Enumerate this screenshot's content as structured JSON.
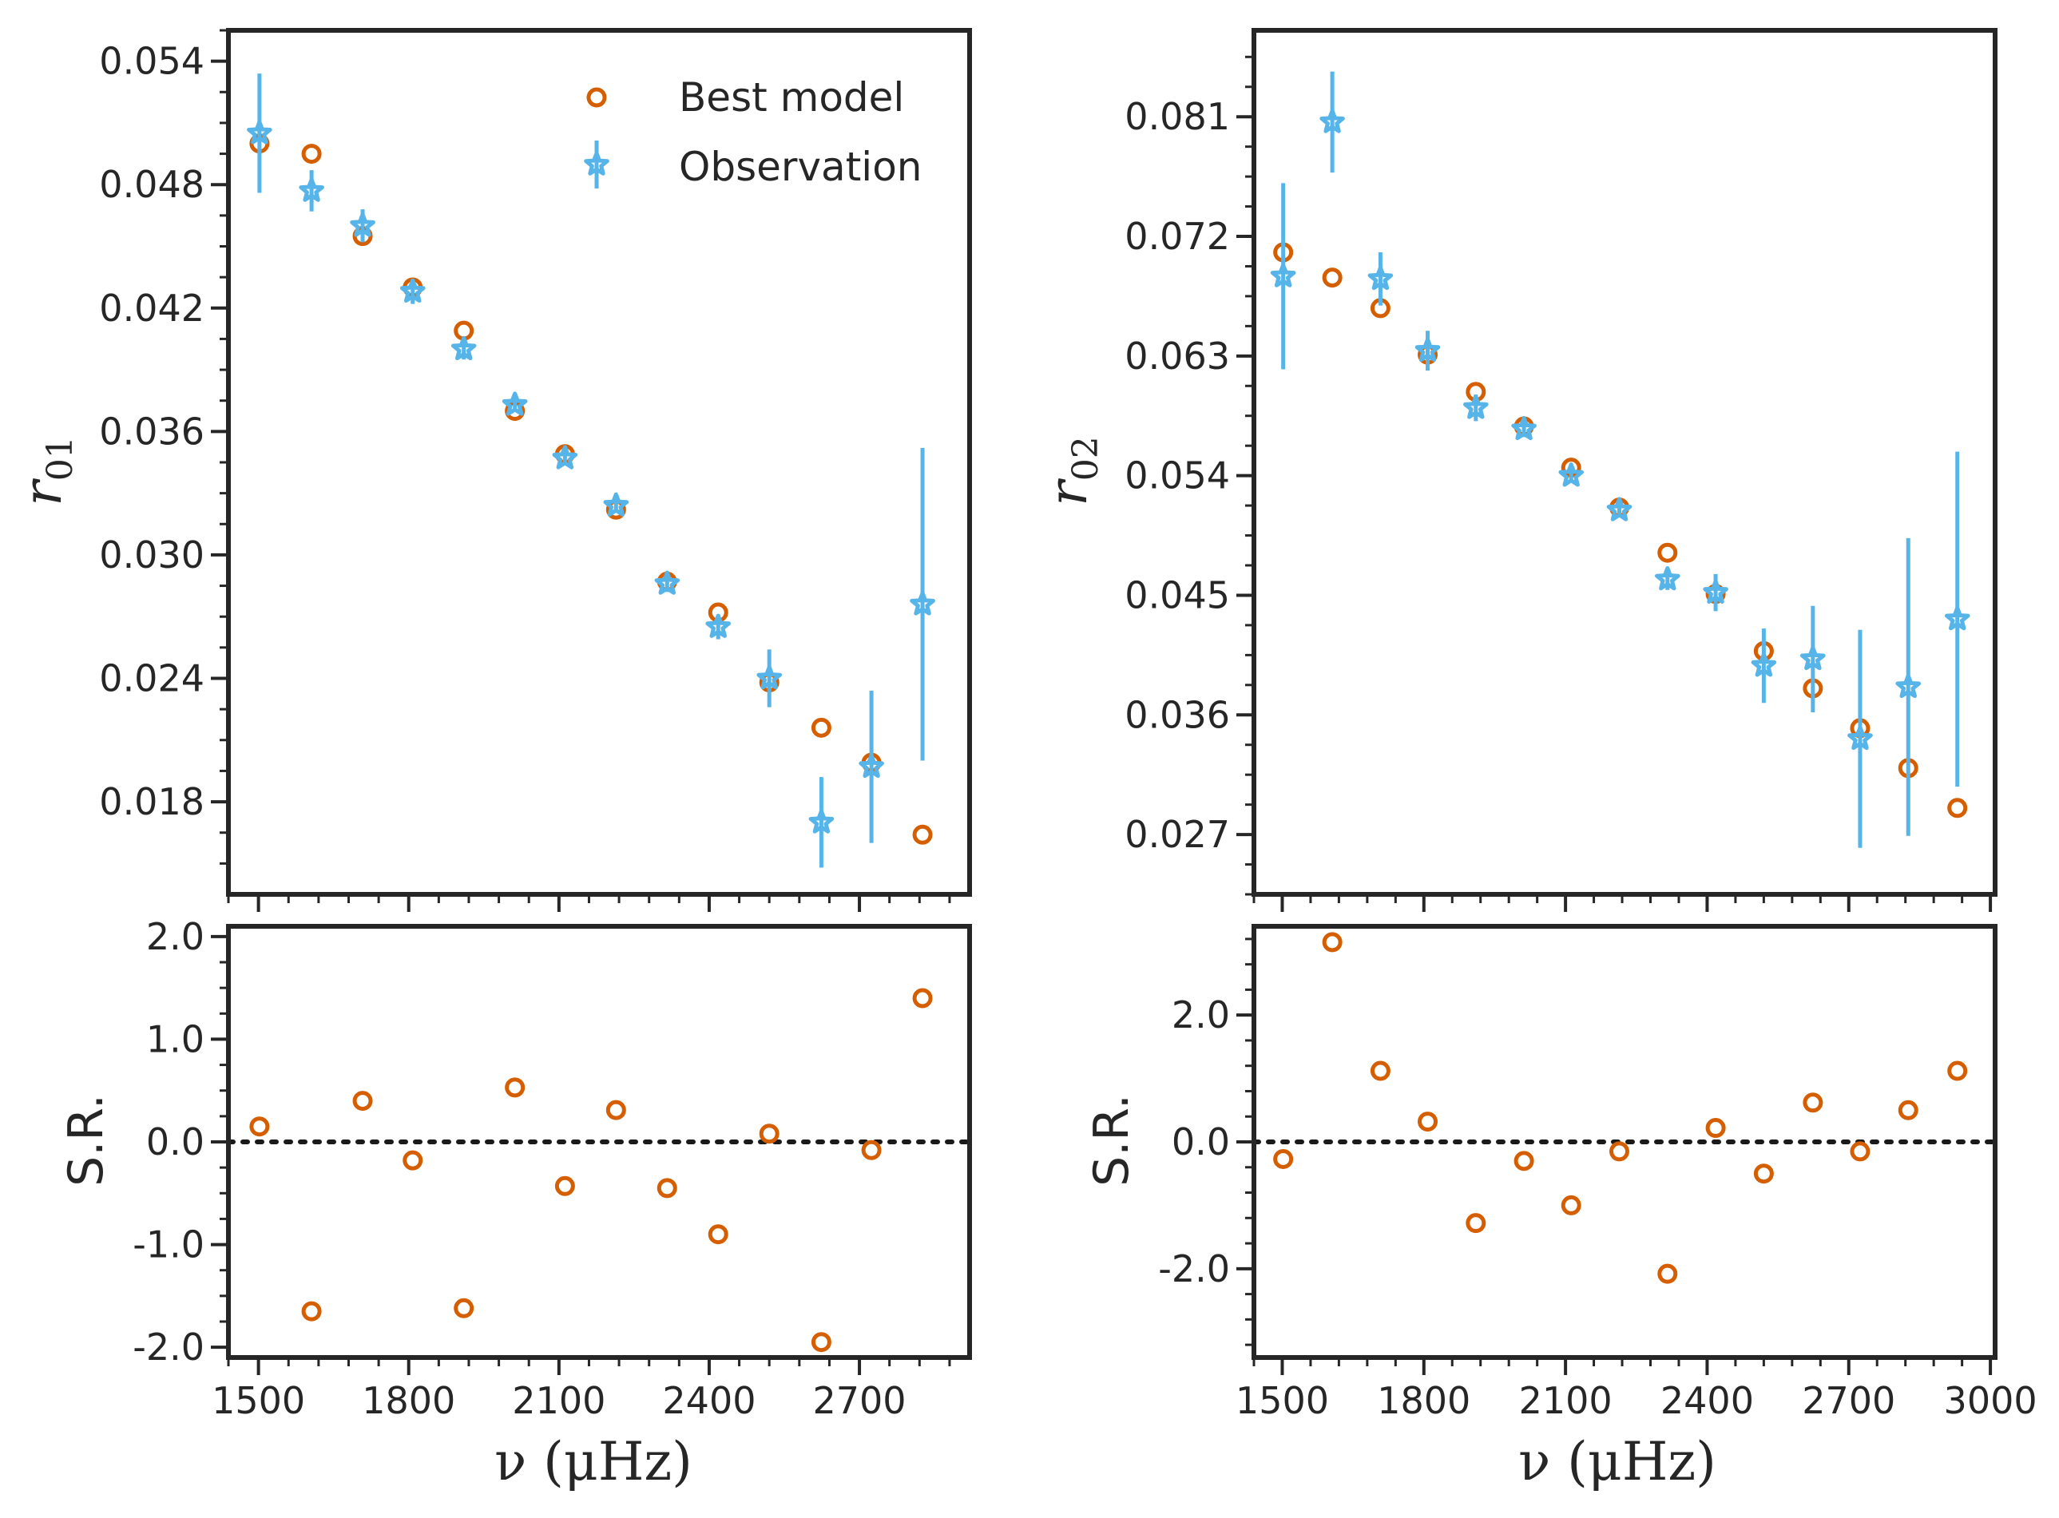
{
  "colors": {
    "model": "#d55e00",
    "observation": "#56b4e9",
    "axes": "#262626"
  },
  "chart_data": [
    {
      "id": "r01",
      "type": "scatter",
      "ylabel": "r01",
      "ylim": [
        0.0135,
        0.0555
      ],
      "xlim": [
        1440,
        2920
      ],
      "yticks": [
        0.018,
        0.024,
        0.03,
        0.036,
        0.042,
        0.048,
        0.054
      ],
      "ytick_labels": [
        "0.018",
        "0.024",
        "0.030",
        "0.036",
        "0.042",
        "0.048",
        "0.054"
      ],
      "xticks": [
        1500,
        1800,
        2100,
        2400,
        2700
      ],
      "legend": {
        "placement": "top-right",
        "model_label": "Best model",
        "obs_label": "Observation"
      },
      "series": [
        {
          "role": "model",
          "x": [
            1502,
            1606,
            1708,
            1808,
            1910,
            2012,
            2112,
            2214,
            2316,
            2418,
            2520,
            2624,
            2724,
            2826
          ],
          "y": [
            0.05,
            0.0495,
            0.0455,
            0.043,
            0.0409,
            0.037,
            0.0349,
            0.0322,
            0.0287,
            0.0272,
            0.0238,
            0.0216,
            0.0199,
            0.0164
          ]
        },
        {
          "role": "observation",
          "x": [
            1502,
            1606,
            1708,
            1808,
            1910,
            2012,
            2112,
            2214,
            2316,
            2418,
            2520,
            2624,
            2724,
            2826
          ],
          "y": [
            0.0505,
            0.0477,
            0.046,
            0.0428,
            0.04,
            0.0373,
            0.0347,
            0.0324,
            0.0286,
            0.0265,
            0.024,
            0.017,
            0.0197,
            0.0276
          ],
          "yerr": [
            0.0029,
            0.001,
            0.0008,
            0.0006,
            0.0005,
            0.0003,
            0.0003,
            0.0003,
            0.0004,
            0.0006,
            0.0014,
            0.0022,
            0.0037,
            0.0076
          ]
        }
      ]
    },
    {
      "id": "sr01",
      "type": "scatter",
      "ylabel": "S.R.",
      "ylim": [
        -2.1,
        2.1
      ],
      "xlim": [
        1440,
        2920
      ],
      "yticks": [
        -2.0,
        -1.0,
        0.0,
        1.0,
        2.0
      ],
      "ytick_labels": [
        "-2.0",
        "-1.0",
        "0.0",
        "1.0",
        "2.0"
      ],
      "xticks": [
        1500,
        1800,
        2100,
        2400,
        2700
      ],
      "xtick_labels": [
        "1500",
        "1800",
        "2100",
        "2400",
        "2700"
      ],
      "xlabel": "ν (μHz)",
      "zero_line": true,
      "series": [
        {
          "role": "model",
          "x": [
            1502,
            1606,
            1708,
            1808,
            1910,
            2012,
            2112,
            2214,
            2316,
            2418,
            2520,
            2624,
            2724,
            2826
          ],
          "y": [
            0.15,
            -1.65,
            0.4,
            -0.18,
            -1.62,
            0.53,
            -0.43,
            0.31,
            -0.45,
            -0.9,
            0.08,
            -1.95,
            -0.08,
            1.4
          ]
        }
      ]
    },
    {
      "id": "r02",
      "type": "scatter",
      "ylabel": "r02",
      "ylim": [
        0.0225,
        0.0875
      ],
      "xlim": [
        1440,
        3010
      ],
      "yticks": [
        0.027,
        0.036,
        0.045,
        0.054,
        0.063,
        0.072,
        0.081
      ],
      "ytick_labels": [
        "0.027",
        "0.036",
        "0.045",
        "0.054",
        "0.063",
        "0.072",
        "0.081"
      ],
      "xticks": [
        1500,
        1800,
        2100,
        2400,
        2700,
        3000
      ],
      "series": [
        {
          "role": "model",
          "x": [
            1502,
            1606,
            1708,
            1808,
            1910,
            2012,
            2112,
            2214,
            2316,
            2418,
            2520,
            2624,
            2724,
            2826,
            2930
          ],
          "y": [
            0.0708,
            0.0689,
            0.0666,
            0.0631,
            0.0603,
            0.0577,
            0.0546,
            0.0516,
            0.0482,
            0.0451,
            0.0408,
            0.038,
            0.035,
            0.032,
            0.029
          ]
        },
        {
          "role": "observation",
          "x": [
            1502,
            1606,
            1708,
            1808,
            1910,
            2012,
            2112,
            2214,
            2316,
            2418,
            2520,
            2624,
            2724,
            2826,
            2930
          ],
          "y": [
            0.069,
            0.0806,
            0.0688,
            0.0634,
            0.0591,
            0.0575,
            0.054,
            0.0514,
            0.0462,
            0.0452,
            0.0397,
            0.0402,
            0.0342,
            0.0381,
            0.0432
          ],
          "yerr": [
            0.007,
            0.0038,
            0.002,
            0.0015,
            0.001,
            0.0006,
            0.0005,
            0.0004,
            0.0008,
            0.0014,
            0.0028,
            0.004,
            0.0082,
            0.0112,
            0.0126
          ]
        }
      ]
    },
    {
      "id": "sr02",
      "type": "scatter",
      "ylabel": "S.R.",
      "ylim": [
        -3.4,
        3.4
      ],
      "xlim": [
        1440,
        3010
      ],
      "yticks": [
        -2.0,
        0.0,
        2.0
      ],
      "ytick_labels": [
        "-2.0",
        "0.0",
        "2.0"
      ],
      "xticks": [
        1500,
        1800,
        2100,
        2400,
        2700,
        3000
      ],
      "xtick_labels": [
        "1500",
        "1800",
        "2100",
        "2400",
        "2700",
        "3000"
      ],
      "xlabel": "ν (μHz)",
      "zero_line": true,
      "series": [
        {
          "role": "model",
          "x": [
            1502,
            1606,
            1708,
            1808,
            1910,
            2012,
            2112,
            2214,
            2316,
            2418,
            2520,
            2624,
            2724,
            2826,
            2930
          ],
          "y": [
            -0.27,
            3.15,
            1.12,
            0.32,
            -1.28,
            -0.3,
            -1.0,
            -0.15,
            -2.08,
            0.22,
            -0.5,
            0.62,
            -0.15,
            0.5,
            1.12
          ]
        }
      ]
    }
  ]
}
